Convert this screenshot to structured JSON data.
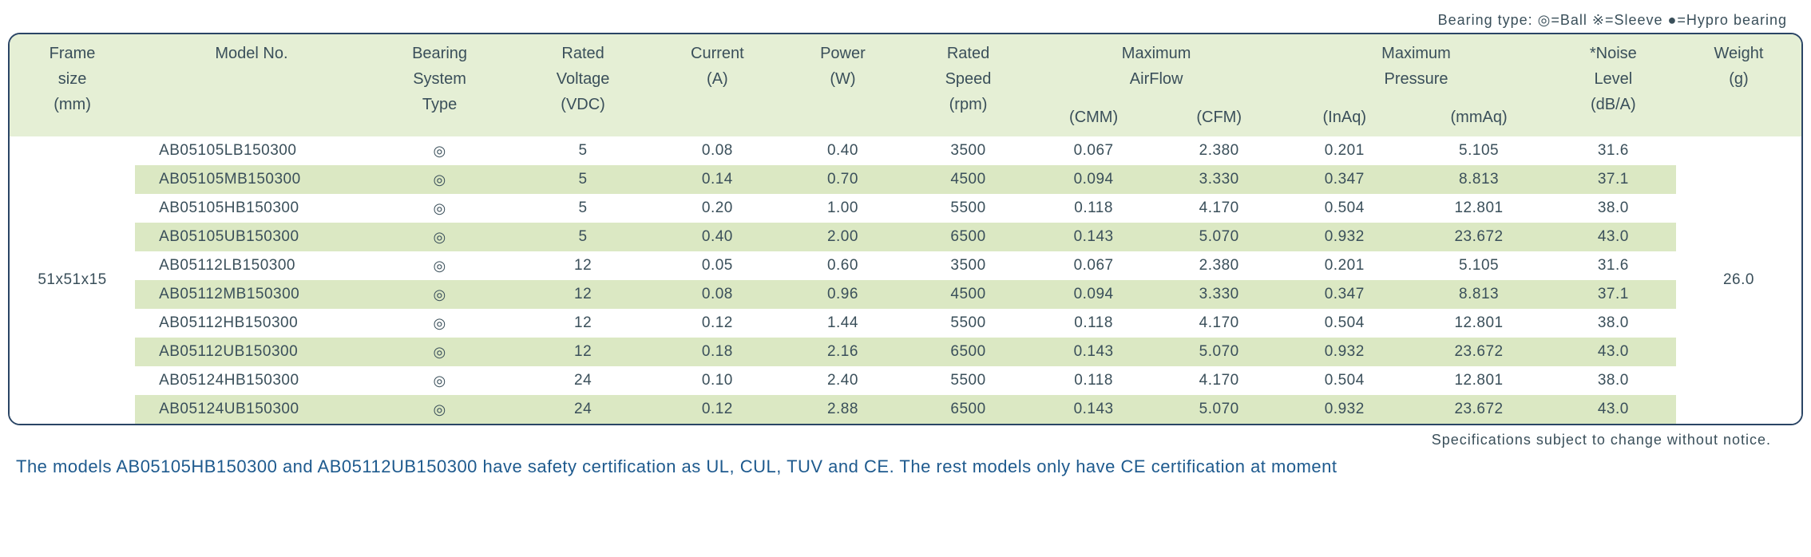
{
  "bearing_legend": "Bearing type:  ◎=Ball ※=Sleeve ●=Hypro bearing",
  "headers": {
    "frame": [
      "Frame",
      "size",
      "(mm)"
    ],
    "model": [
      "",
      "Model No.",
      ""
    ],
    "bearing": [
      "Bearing",
      "System",
      "Type"
    ],
    "voltage": [
      "Rated",
      "Voltage",
      "(VDC)"
    ],
    "current": [
      "",
      "Current",
      "(A)"
    ],
    "power": [
      "",
      "Power",
      "(W)"
    ],
    "speed": [
      "Rated",
      "Speed",
      "(rpm)"
    ],
    "airflow": [
      "Maximum",
      "AirFlow"
    ],
    "cmm": "(CMM)",
    "cfm": "(CFM)",
    "pressure": [
      "Maximum",
      "Pressure"
    ],
    "inaq": "(InAq)",
    "mmaq": "(mmAq)",
    "noise": [
      "*Noise",
      "Level",
      "(dB/A)"
    ],
    "weight": [
      "",
      "Weight",
      "(g)"
    ]
  },
  "frame_size": "51x51x15",
  "weight": "26.0",
  "rows": [
    {
      "model": "AB05105LB150300",
      "bearing": "◎",
      "voltage": "5",
      "current": "0.08",
      "power": "0.40",
      "speed": "3500",
      "cmm": "0.067",
      "cfm": "2.380",
      "inaq": "0.201",
      "mmaq": "5.105",
      "noise": "31.6"
    },
    {
      "model": "AB05105MB150300",
      "bearing": "◎",
      "voltage": "5",
      "current": "0.14",
      "power": "0.70",
      "speed": "4500",
      "cmm": "0.094",
      "cfm": "3.330",
      "inaq": "0.347",
      "mmaq": "8.813",
      "noise": "37.1"
    },
    {
      "model": "AB05105HB150300",
      "bearing": "◎",
      "voltage": "5",
      "current": "0.20",
      "power": "1.00",
      "speed": "5500",
      "cmm": "0.118",
      "cfm": "4.170",
      "inaq": "0.504",
      "mmaq": "12.801",
      "noise": "38.0"
    },
    {
      "model": "AB05105UB150300",
      "bearing": "◎",
      "voltage": "5",
      "current": "0.40",
      "power": "2.00",
      "speed": "6500",
      "cmm": "0.143",
      "cfm": "5.070",
      "inaq": "0.932",
      "mmaq": "23.672",
      "noise": "43.0"
    },
    {
      "model": "AB05112LB150300",
      "bearing": "◎",
      "voltage": "12",
      "current": "0.05",
      "power": "0.60",
      "speed": "3500",
      "cmm": "0.067",
      "cfm": "2.380",
      "inaq": "0.201",
      "mmaq": "5.105",
      "noise": "31.6"
    },
    {
      "model": "AB05112MB150300",
      "bearing": "◎",
      "voltage": "12",
      "current": "0.08",
      "power": "0.96",
      "speed": "4500",
      "cmm": "0.094",
      "cfm": "3.330",
      "inaq": "0.347",
      "mmaq": "8.813",
      "noise": "37.1"
    },
    {
      "model": "AB05112HB150300",
      "bearing": "◎",
      "voltage": "12",
      "current": "0.12",
      "power": "1.44",
      "speed": "5500",
      "cmm": "0.118",
      "cfm": "4.170",
      "inaq": "0.504",
      "mmaq": "12.801",
      "noise": "38.0"
    },
    {
      "model": "AB05112UB150300",
      "bearing": "◎",
      "voltage": "12",
      "current": "0.18",
      "power": "2.16",
      "speed": "6500",
      "cmm": "0.143",
      "cfm": "5.070",
      "inaq": "0.932",
      "mmaq": "23.672",
      "noise": "43.0"
    },
    {
      "model": "AB05124HB150300",
      "bearing": "◎",
      "voltage": "24",
      "current": "0.10",
      "power": "2.40",
      "speed": "5500",
      "cmm": "0.118",
      "cfm": "4.170",
      "inaq": "0.504",
      "mmaq": "12.801",
      "noise": "38.0"
    },
    {
      "model": "AB05124UB150300",
      "bearing": "◎",
      "voltage": "24",
      "current": "0.12",
      "power": "2.88",
      "speed": "6500",
      "cmm": "0.143",
      "cfm": "5.070",
      "inaq": "0.932",
      "mmaq": "23.672",
      "noise": "43.0"
    }
  ],
  "footer_note": "Specifications subject to change without notice.",
  "cert_note": "The models AB05105HB150300 and AB05112UB150300 have safety certification as UL, CUL, TUV and CE. The rest models only have CE certification at moment"
}
